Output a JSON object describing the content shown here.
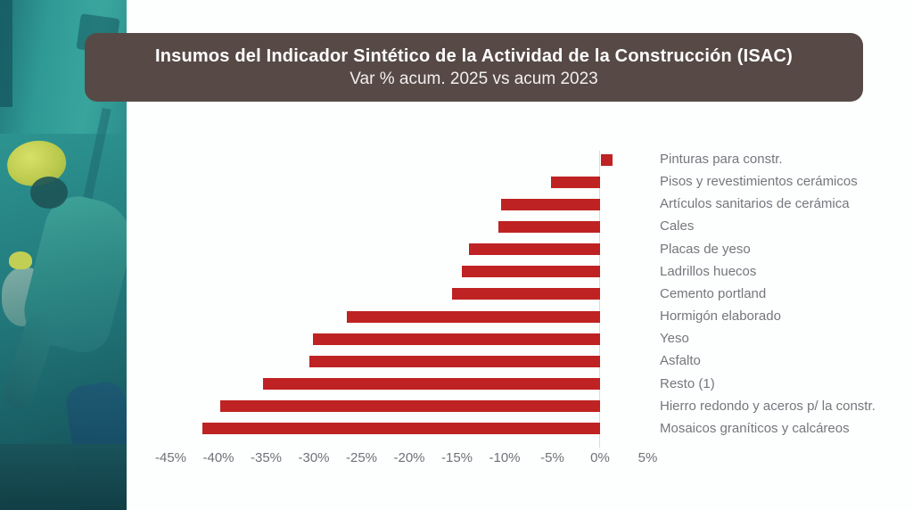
{
  "banner": {
    "title": "Insumos del Indicador Sintético de la Actividad de la Construcción (ISAC)",
    "subtitle": "Var % acum. 2025 vs acum 2023"
  },
  "sidebar": {
    "content": "construction-worker-photo",
    "overlay_color": "#2b908d",
    "helmet_color": "#bccb4d"
  },
  "chart_data": {
    "type": "bar",
    "orientation": "horizontal",
    "title": "Insumos del Indicador Sintético de la Actividad de la Construcción (ISAC)",
    "subtitle": "Var % acum. 2025 vs acum 2023",
    "unit": "%",
    "categories": [
      "Pinturas para constr.",
      "Pisos y revestimientos cerámicos",
      "Artículos sanitarios de cerámica",
      "Cales",
      "Placas de yeso",
      "Ladrillos huecos",
      "Cemento portland",
      "Hormigón elaborado",
      "Yeso",
      "Asfalto",
      "Resto (1)",
      "Hierro redondo y aceros p/ la constr.",
      "Mosaicos graníticos y calcáreos"
    ],
    "values": [
      1.2,
      -5.1,
      -10.4,
      -10.7,
      -13.7,
      -14.5,
      -15.5,
      -26.5,
      -30.1,
      -30.5,
      -35.3,
      -39.8,
      -41.7
    ],
    "x_ticks": [
      "-45%",
      "-40%",
      "-35%",
      "-30%",
      "-25%",
      "-20%",
      "-15%",
      "-10%",
      "-5%",
      "0%",
      "5%"
    ],
    "x_tick_values": [
      -45,
      -40,
      -35,
      -30,
      -25,
      -20,
      -15,
      -10,
      -5,
      0,
      5
    ],
    "xlim": [
      -45,
      5
    ],
    "bar_color": "#bf2222",
    "grid": "off",
    "legend": "none"
  }
}
